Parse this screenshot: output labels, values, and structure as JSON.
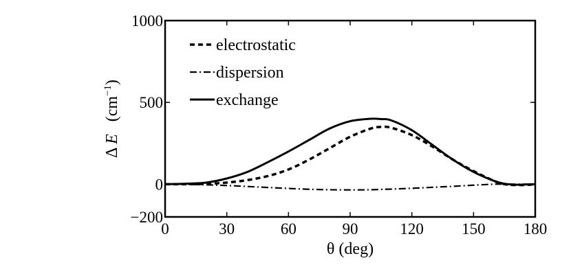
{
  "chart_data": {
    "type": "line",
    "title": "",
    "xlabel": "θ  (deg)",
    "ylabel": {
      "prefix": "Δ ",
      "symbol": "E",
      "unit_open": "   (cm",
      "unit_sup": "−1",
      "unit_close": ")"
    },
    "xlim": [
      0,
      180
    ],
    "ylim": [
      -200,
      1000
    ],
    "xticks": [
      0,
      30,
      60,
      90,
      120,
      150,
      180
    ],
    "xtick_labels": [
      "0",
      "30",
      "60",
      "90",
      "120",
      "150",
      "180"
    ],
    "yticks": [
      -200,
      0,
      500,
      1000
    ],
    "ytick_labels": [
      "−200",
      "0",
      "500",
      "1000"
    ],
    "grid": false,
    "legend_position": "top-left",
    "x": [
      0,
      10,
      20,
      30,
      40,
      50,
      60,
      70,
      80,
      90,
      100,
      105,
      110,
      120,
      130,
      140,
      150,
      160,
      165,
      170,
      175,
      180
    ],
    "series": [
      {
        "name": "electrostatic",
        "style": "dashed",
        "color": "#000000",
        "values": [
          0,
          0,
          2,
          10,
          25,
          50,
          90,
          150,
          220,
          290,
          340,
          350,
          345,
          300,
          230,
          150,
          80,
          20,
          0,
          -5,
          -5,
          0
        ]
      },
      {
        "name": "dispersion",
        "style": "dashdot",
        "color": "#000000",
        "values": [
          0,
          -1,
          -4,
          -8,
          -14,
          -20,
          -26,
          -31,
          -34,
          -35,
          -34,
          -32,
          -30,
          -25,
          -19,
          -13,
          -6,
          0,
          1,
          0,
          0,
          0
        ]
      },
      {
        "name": "exchange",
        "style": "solid",
        "color": "#000000",
        "values": [
          0,
          3,
          10,
          35,
          75,
          135,
          200,
          270,
          340,
          385,
          400,
          398,
          390,
          330,
          240,
          150,
          75,
          20,
          3,
          -3,
          -2,
          0
        ]
      }
    ]
  }
}
